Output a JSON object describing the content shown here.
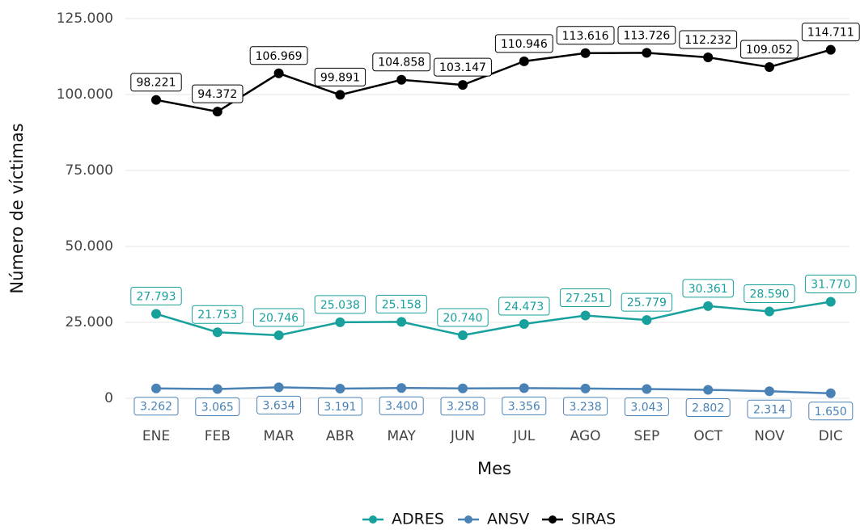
{
  "chart_data": {
    "type": "line",
    "x_label": "Mes",
    "y_label": "Número de víctimas",
    "categories": [
      "ENE",
      "FEB",
      "MAR",
      "ABR",
      "MAY",
      "JUN",
      "JUL",
      "AGO",
      "SEP",
      "OCT",
      "NOV",
      "DIC"
    ],
    "series": [
      {
        "name": "ADRES",
        "color": "#17a09c",
        "values": [
          27793,
          21753,
          20746,
          25038,
          25158,
          20740,
          24473,
          27251,
          25779,
          30361,
          28590,
          31770
        ],
        "value_labels": [
          "27.793",
          "21.753",
          "20.746",
          "25.038",
          "25.158",
          "20.740",
          "24.473",
          "27.251",
          "25.779",
          "30.361",
          "28.590",
          "31.770"
        ]
      },
      {
        "name": "ANSV",
        "color": "#4a82b6",
        "values": [
          3262,
          3065,
          3634,
          3191,
          3400,
          3258,
          3356,
          3238,
          3043,
          2802,
          2314,
          1650
        ],
        "value_labels": [
          "3.262",
          "3.065",
          "3.634",
          "3.191",
          "3.400",
          "3.258",
          "3.356",
          "3.238",
          "3.043",
          "2.802",
          "2.314",
          "1.650"
        ]
      },
      {
        "name": "SIRAS",
        "color": "#000000",
        "values": [
          98221,
          94372,
          106969,
          99891,
          104858,
          103147,
          110946,
          113616,
          113726,
          112232,
          109052,
          114711
        ],
        "value_labels": [
          "98.221",
          "94.372",
          "106.969",
          "99.891",
          "104.858",
          "103.147",
          "110.946",
          "113.616",
          "113.726",
          "112.232",
          "109.052",
          "114.711"
        ]
      }
    ],
    "ylim": [
      0,
      125000
    ],
    "yticks": [
      0,
      {
        "value": 25000,
        "label": "25.000"
      },
      {
        "value": 50000,
        "label": "50.000"
      },
      {
        "value": 75000,
        "label": "75.000"
      },
      {
        "value": 100000,
        "label": "100.000"
      },
      {
        "value": 125000,
        "label": "125.000"
      }
    ],
    "grid": true,
    "legend": "bottom"
  }
}
